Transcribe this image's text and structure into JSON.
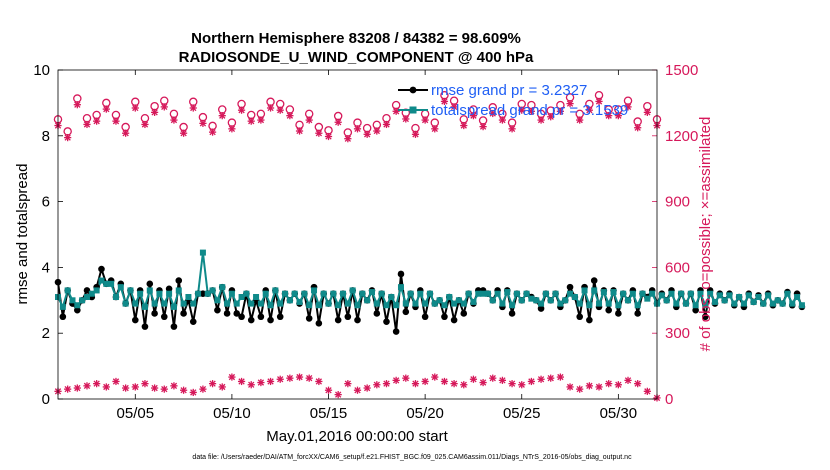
{
  "chart_data": {
    "type": "line",
    "title_line1": "Northern Hemisphere 83208 / 84382 = 98.609%",
    "title_line2": "RADIOSONDE_U_WIND_COMPONENT @ 400 hPa",
    "xlabel": "May.01,2016 00:00:00 start",
    "ylabel_left": "rmse and totalspread",
    "ylabel_right": "# of obs: o=possible; ×=assimilated",
    "x_tick_labels": [
      "05/05",
      "05/10",
      "05/15",
      "05/20",
      "05/25",
      "05/30"
    ],
    "x_tick_days": [
      5,
      10,
      15,
      20,
      25,
      30
    ],
    "xlim": [
      1,
      32
    ],
    "ylim_left": [
      0,
      10
    ],
    "yticks_left": [
      "0",
      "2",
      "4",
      "6",
      "8",
      "10"
    ],
    "ylim_right": [
      0,
      1500
    ],
    "yticks_right": [
      "0",
      "300",
      "600",
      "900",
      "1200",
      "1500"
    ],
    "footnote": "data file: /Users/raeder/DAI/ATM_forcXX/CAM6_setup/f.e21.FHIST_BGC.f09_025.CAM6assim.011/Diags_NTrS_2016-05/obs_diag_output.nc",
    "legend": [
      {
        "label": "rmse grand pr = 3.2327",
        "color": "#000000"
      },
      {
        "label": "totalspread grand pr = 3.1539",
        "color": "#0f8a8a"
      }
    ],
    "colors": {
      "rmse": "#000000",
      "spread": "#0f8a8a",
      "obs": "#d6185a",
      "legend_text": "#1f5ff5"
    },
    "x_start": 1.0,
    "x_step": 0.25,
    "series": [
      {
        "name": "rmse",
        "values": [
          3.55,
          2.5,
          3.3,
          2.9,
          2.7,
          3.0,
          3.3,
          3.1,
          3.4,
          3.95,
          3.5,
          3.6,
          3.1,
          3.5,
          2.9,
          3.3,
          2.4,
          3.3,
          2.2,
          3.5,
          2.6,
          3.3,
          2.5,
          3.35,
          2.2,
          3.6,
          2.6,
          3.0,
          2.35,
          3.2,
          3.2,
          3.2,
          3.3,
          2.7,
          3.4,
          2.6,
          3.3,
          2.6,
          2.5,
          3.2,
          2.4,
          3.0,
          2.5,
          3.3,
          2.4,
          3.3,
          2.5,
          3.2,
          3.0,
          3.2,
          2.9,
          3.2,
          2.45,
          3.4,
          2.3,
          3.2,
          2.9,
          3.2,
          2.4,
          3.2,
          2.5,
          3.3,
          2.4,
          3.2,
          3.0,
          3.3,
          2.6,
          3.2,
          2.35,
          3.1,
          2.05,
          3.8,
          2.65,
          3.2,
          2.8,
          3.3,
          2.5,
          3.2,
          2.9,
          3.0,
          2.5,
          3.1,
          2.4,
          3.0,
          2.6,
          3.2,
          2.9,
          3.3,
          3.3,
          3.2,
          3.0,
          3.3,
          2.8,
          3.3,
          2.6,
          3.2,
          3.0,
          3.2,
          3.1,
          3.0,
          2.75,
          3.2,
          3.0,
          3.2,
          2.8,
          3.0,
          3.4,
          3.1,
          2.5,
          3.4,
          2.4,
          3.6,
          2.8,
          3.3,
          2.7,
          3.3,
          2.6,
          3.2,
          3.0,
          3.3,
          2.6,
          3.2,
          3.1,
          3.3,
          2.9,
          3.2,
          3.0,
          3.3,
          2.8,
          3.2,
          2.9,
          3.2,
          2.7,
          3.3,
          2.5,
          3.3,
          2.9,
          3.2,
          3.0,
          3.2,
          2.85,
          3.1,
          2.8,
          3.2,
          2.95,
          3.15,
          2.9,
          3.2,
          2.85,
          3.0,
          2.9,
          3.25,
          2.85,
          3.2,
          2.8
        ]
      },
      {
        "name": "totalspread",
        "values": [
          3.1,
          2.8,
          3.3,
          3.0,
          2.85,
          3.0,
          3.1,
          3.2,
          3.3,
          3.6,
          3.5,
          3.5,
          3.1,
          3.4,
          2.9,
          3.3,
          2.9,
          3.2,
          2.8,
          3.3,
          2.9,
          3.2,
          2.9,
          3.2,
          2.8,
          3.3,
          2.9,
          3.1,
          2.9,
          3.2,
          4.45,
          3.2,
          3.3,
          3.0,
          3.4,
          2.9,
          3.2,
          2.9,
          3.1,
          3.2,
          2.9,
          3.1,
          2.9,
          3.2,
          2.85,
          3.3,
          2.9,
          3.2,
          3.0,
          3.2,
          2.95,
          3.2,
          2.85,
          3.3,
          2.85,
          3.2,
          2.9,
          3.2,
          2.85,
          3.2,
          2.9,
          3.3,
          2.85,
          3.2,
          3.0,
          3.25,
          2.9,
          3.2,
          2.85,
          3.1,
          2.85,
          3.4,
          2.9,
          3.2,
          2.9,
          3.2,
          2.9,
          3.2,
          2.9,
          3.0,
          2.85,
          3.1,
          2.9,
          3.0,
          2.9,
          3.2,
          2.95,
          3.2,
          3.2,
          3.2,
          3.0,
          3.2,
          2.9,
          3.25,
          2.85,
          3.2,
          3.0,
          3.2,
          3.05,
          3.0,
          2.9,
          3.2,
          3.0,
          3.2,
          2.9,
          3.0,
          3.2,
          3.1,
          2.9,
          3.3,
          2.85,
          3.3,
          2.9,
          3.25,
          2.9,
          3.25,
          2.85,
          3.2,
          3.0,
          3.2,
          2.85,
          3.2,
          3.05,
          3.2,
          2.9,
          3.15,
          3.0,
          3.2,
          2.9,
          3.2,
          2.9,
          3.2,
          2.85,
          3.2,
          2.85,
          3.2,
          2.95,
          3.15,
          3.0,
          3.15,
          2.9,
          3.1,
          2.9,
          3.15,
          2.95,
          3.1,
          2.9,
          3.15,
          2.9,
          3.0,
          2.9,
          3.2,
          2.9,
          3.1,
          2.85
        ]
      }
    ],
    "obs_x_start": 1.0,
    "obs_x_step": 0.5,
    "obs_possible": [
      1275,
      1220,
      1370,
      1280,
      1295,
      1350,
      1295,
      1240,
      1355,
      1280,
      1335,
      1360,
      1300,
      1240,
      1355,
      1285,
      1245,
      1320,
      1260,
      1345,
      1295,
      1300,
      1355,
      1345,
      1320,
      1250,
      1300,
      1240,
      1225,
      1290,
      1215,
      1260,
      1235,
      1250,
      1280,
      1340,
      1305,
      1235,
      1300,
      1260,
      1385,
      1360,
      1275,
      1320,
      1270,
      1330,
      1300,
      1260,
      1345,
      1340,
      1300,
      1315,
      1340,
      1375,
      1300,
      1345,
      1385,
      1320,
      1320,
      1360,
      1265,
      1335,
      1275
    ],
    "obs_assimilated": [
      1265,
      1210,
      1360,
      1270,
      1285,
      1340,
      1285,
      1230,
      1345,
      1270,
      1325,
      1350,
      1290,
      1230,
      1345,
      1275,
      1235,
      1310,
      1250,
      1335,
      1285,
      1290,
      1345,
      1335,
      1310,
      1240,
      1290,
      1230,
      1215,
      1280,
      1205,
      1250,
      1225,
      1240,
      1270,
      1330,
      1295,
      1225,
      1290,
      1250,
      1375,
      1350,
      1265,
      1310,
      1260,
      1320,
      1290,
      1250,
      1335,
      1330,
      1290,
      1305,
      1330,
      1365,
      1290,
      1335,
      1375,
      1310,
      1310,
      1350,
      1255,
      1325,
      1265
    ],
    "rejected_count": [
      35,
      45,
      50,
      60,
      70,
      55,
      80,
      50,
      55,
      70,
      50,
      45,
      60,
      40,
      30,
      45,
      70,
      55,
      100,
      80,
      65,
      75,
      80,
      90,
      95,
      100,
      95,
      80,
      40,
      20,
      70,
      40,
      50,
      65,
      70,
      85,
      95,
      70,
      80,
      100,
      80,
      70,
      65,
      90,
      75,
      95,
      85,
      70,
      65,
      80,
      90,
      95,
      100,
      55,
      45,
      60,
      55,
      70,
      65,
      85,
      70,
      35,
      5
    ]
  }
}
